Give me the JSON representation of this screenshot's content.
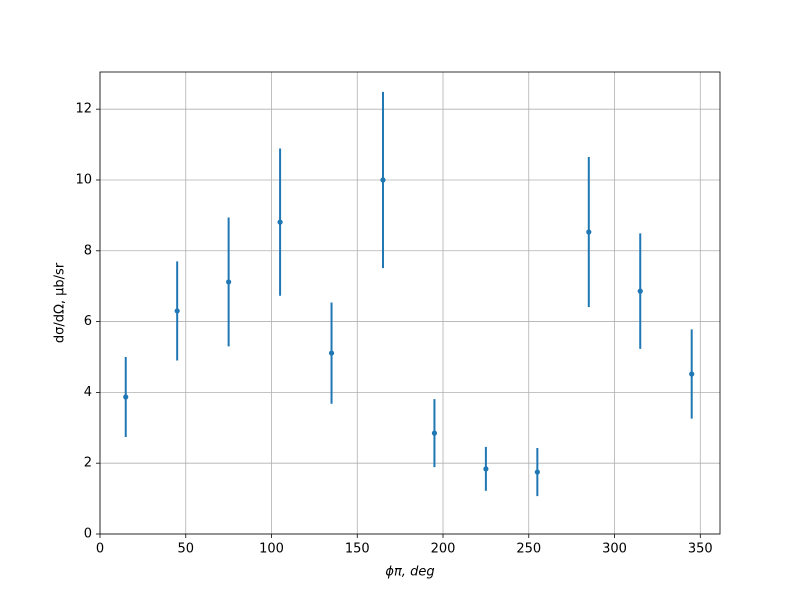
{
  "chart_data": {
    "type": "errorbar",
    "xlabel": "ϕπ, deg",
    "ylabel": "dσ/dΩ, μb/sr",
    "x": [
      15,
      45,
      75,
      105,
      135,
      165,
      195,
      225,
      255,
      285,
      315,
      345
    ],
    "series": [
      {
        "color": "#1f77b4",
        "values": [
          3.87,
          6.3,
          7.12,
          8.81,
          5.11,
          10.0,
          2.85,
          1.84,
          1.75,
          8.53,
          6.86,
          4.52
        ],
        "errors": [
          1.13,
          1.4,
          1.82,
          2.08,
          1.43,
          2.49,
          0.96,
          0.62,
          0.68,
          2.12,
          1.63,
          1.26
        ]
      }
    ],
    "xlim": [
      0,
      361.5
    ],
    "ylim": [
      0,
      13.05
    ],
    "xticks": [
      0,
      50,
      100,
      150,
      200,
      250,
      300,
      350
    ],
    "yticks": [
      0,
      2,
      4,
      6,
      8,
      10,
      12
    ],
    "grid": true
  }
}
